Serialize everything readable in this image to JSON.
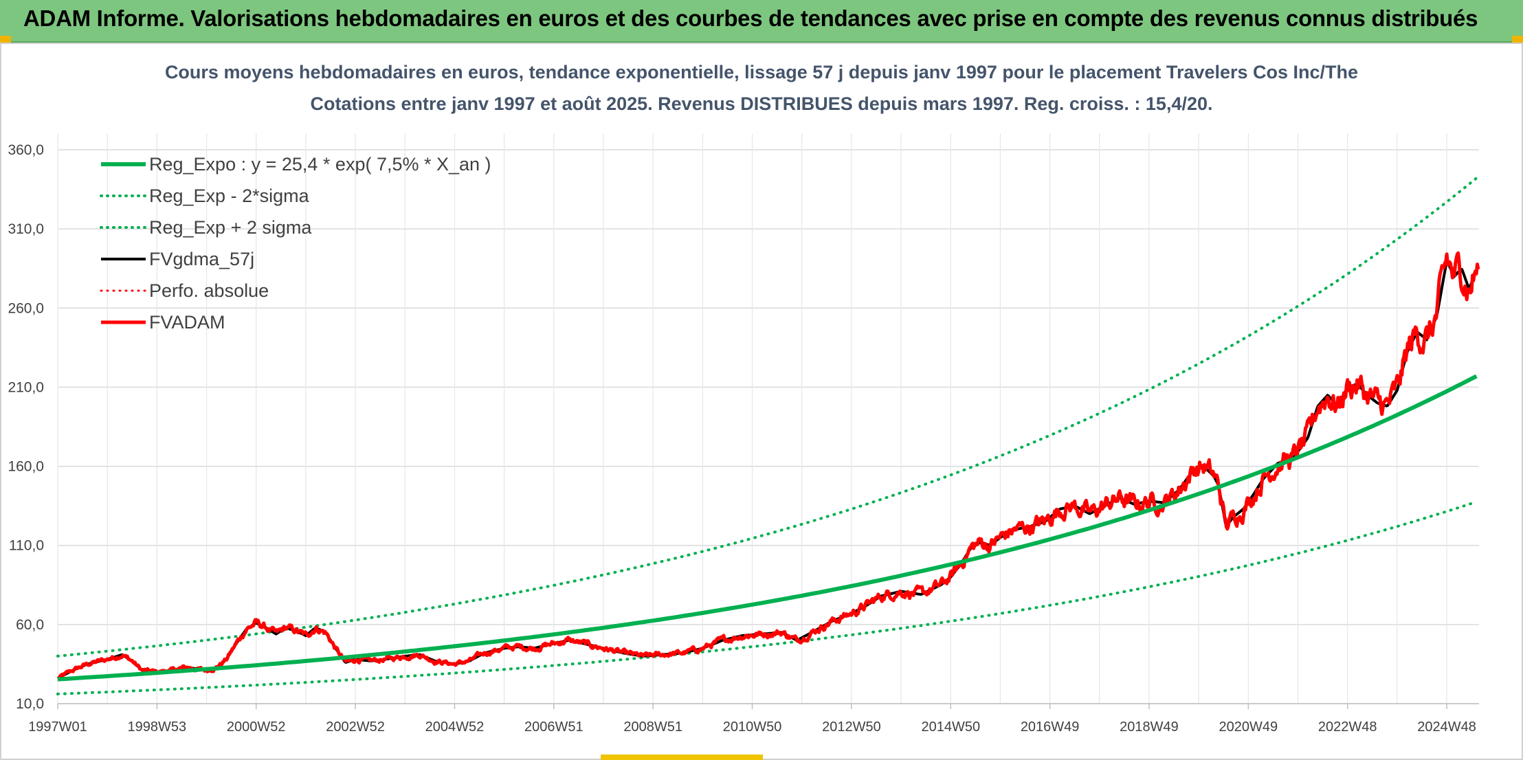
{
  "header": {
    "title": "ADAM Informe. Valorisations hebdomadaires en euros et des courbes de tendances avec prise en compte des revenus connus distribués"
  },
  "colors": {
    "header_bg": "#7dc67f",
    "reg_green": "#00b050",
    "fv_black": "#000000",
    "adam_red": "#ff0000",
    "grid": "#d9d9d9",
    "title_text": "#44546a"
  },
  "chart_data": {
    "type": "line",
    "title": "Cours moyens hebdomadaires en euros, tendance exponentielle, lissage 57 j depuis janv 1997 pour le placement Travelers Cos Inc/The",
    "subtitle": "Cotations entre janv 1997 et août 2025. Revenus DISTRIBUES depuis mars 1997. Reg. croiss. : 15,4/20.",
    "xlabel": "",
    "ylabel": "",
    "ylim": [
      10,
      360
    ],
    "xlim_years": [
      1997.0,
      2025.65
    ],
    "y_ticks": [
      "10,0",
      "60,0",
      "110,0",
      "160,0",
      "210,0",
      "260,0",
      "310,0",
      "360,0"
    ],
    "x_ticks": [
      {
        "label": "1997W01",
        "t": 1997.0
      },
      {
        "label": "1998W53",
        "t": 1999.0
      },
      {
        "label": "2000W52",
        "t": 2001.0
      },
      {
        "label": "2002W52",
        "t": 2003.0
      },
      {
        "label": "2004W52",
        "t": 2005.0
      },
      {
        "label": "2006W51",
        "t": 2007.0
      },
      {
        "label": "2008W51",
        "t": 2009.0
      },
      {
        "label": "2010W50",
        "t": 2011.0
      },
      {
        "label": "2012W50",
        "t": 2013.0
      },
      {
        "label": "2014W50",
        "t": 2015.0
      },
      {
        "label": "2016W49",
        "t": 2017.0
      },
      {
        "label": "2018W49",
        "t": 2019.0
      },
      {
        "label": "2020W49",
        "t": 2021.0
      },
      {
        "label": "2022W48",
        "t": 2023.0
      },
      {
        "label": "2024W48",
        "t": 2025.0
      }
    ],
    "grid": true,
    "legend_position": "top-left",
    "regression": {
      "a": 25.4,
      "rate": 0.075,
      "sigma_factor_low": 0.634,
      "sigma_factor_high": 1.577
    },
    "series": [
      {
        "name": "Reg_Expo : y = 25,4 * exp( 7,5% *  X_an )",
        "color": "#00b050",
        "style": "solid",
        "width": 6
      },
      {
        "name": "Reg_Exp - 2*sigma",
        "color": "#00b050",
        "style": "dotted",
        "width": 4
      },
      {
        "name": "Reg_Exp + 2 sigma",
        "color": "#00b050",
        "style": "dotted",
        "width": 4
      },
      {
        "name": "FVgdma_57j",
        "color": "#000000",
        "style": "solid",
        "width": 4
      },
      {
        "name": "Perfo. absolue",
        "color": "#ff0000",
        "style": "dotted",
        "width": 3
      },
      {
        "name": "FVADAM",
        "color": "#ff0000",
        "style": "solid",
        "width": 5
      }
    ],
    "fvadam_points": [
      [
        1997.0,
        26
      ],
      [
        1997.3,
        31
      ],
      [
        1997.6,
        35
      ],
      [
        1998.0,
        38
      ],
      [
        1998.3,
        41
      ],
      [
        1998.5,
        37
      ],
      [
        1998.7,
        31
      ],
      [
        1999.0,
        30
      ],
      [
        1999.3,
        31
      ],
      [
        1999.6,
        33
      ],
      [
        2000.0,
        31
      ],
      [
        2000.2,
        33
      ],
      [
        2000.4,
        38
      ],
      [
        2000.6,
        48
      ],
      [
        2000.8,
        57
      ],
      [
        2001.0,
        61
      ],
      [
        2001.2,
        58
      ],
      [
        2001.4,
        54
      ],
      [
        2001.6,
        58
      ],
      [
        2001.8,
        56
      ],
      [
        2002.0,
        53
      ],
      [
        2002.2,
        58
      ],
      [
        2002.4,
        55
      ],
      [
        2002.6,
        45
      ],
      [
        2002.8,
        36
      ],
      [
        2003.0,
        38
      ],
      [
        2003.3,
        37
      ],
      [
        2003.6,
        38
      ],
      [
        2004.0,
        40
      ],
      [
        2004.3,
        41
      ],
      [
        2004.6,
        37
      ],
      [
        2005.0,
        35
      ],
      [
        2005.3,
        37
      ],
      [
        2005.6,
        42
      ],
      [
        2006.0,
        45
      ],
      [
        2006.3,
        46
      ],
      [
        2006.6,
        45
      ],
      [
        2007.0,
        48
      ],
      [
        2007.3,
        50
      ],
      [
        2007.6,
        48
      ],
      [
        2008.0,
        45
      ],
      [
        2008.4,
        42
      ],
      [
        2008.8,
        40
      ],
      [
        2009.2,
        41
      ],
      [
        2009.6,
        42
      ],
      [
        2010.0,
        45
      ],
      [
        2010.4,
        50
      ],
      [
        2010.8,
        53
      ],
      [
        2011.2,
        54
      ],
      [
        2011.6,
        55
      ],
      [
        2011.9,
        50
      ],
      [
        2012.2,
        55
      ],
      [
        2012.6,
        62
      ],
      [
        2013.0,
        67
      ],
      [
        2013.3,
        72
      ],
      [
        2013.6,
        78
      ],
      [
        2014.0,
        81
      ],
      [
        2014.4,
        79
      ],
      [
        2014.8,
        85
      ],
      [
        2015.0,
        90
      ],
      [
        2015.2,
        98
      ],
      [
        2015.4,
        108
      ],
      [
        2015.6,
        112
      ],
      [
        2015.8,
        110
      ],
      [
        2016.0,
        115
      ],
      [
        2016.3,
        120
      ],
      [
        2016.6,
        122
      ],
      [
        2016.9,
        125
      ],
      [
        2017.2,
        133
      ],
      [
        2017.5,
        135
      ],
      [
        2017.8,
        130
      ],
      [
        2018.1,
        135
      ],
      [
        2018.4,
        140
      ],
      [
        2018.7,
        136
      ],
      [
        2019.0,
        138
      ],
      [
        2019.3,
        137
      ],
      [
        2019.6,
        145
      ],
      [
        2019.9,
        158
      ],
      [
        2020.1,
        160
      ],
      [
        2020.3,
        154
      ],
      [
        2020.4,
        148
      ],
      [
        2020.55,
        122
      ],
      [
        2020.7,
        128
      ],
      [
        2020.9,
        133
      ],
      [
        2021.1,
        142
      ],
      [
        2021.3,
        152
      ],
      [
        2021.6,
        162
      ],
      [
        2021.9,
        165
      ],
      [
        2022.2,
        178
      ],
      [
        2022.4,
        198
      ],
      [
        2022.6,
        205
      ],
      [
        2022.8,
        198
      ],
      [
        2023.0,
        210
      ],
      [
        2023.2,
        212
      ],
      [
        2023.4,
        205
      ],
      [
        2023.6,
        200
      ],
      [
        2023.8,
        198
      ],
      [
        2024.0,
        208
      ],
      [
        2024.2,
        232
      ],
      [
        2024.4,
        245
      ],
      [
        2024.6,
        240
      ],
      [
        2024.8,
        255
      ],
      [
        2025.0,
        290
      ],
      [
        2025.15,
        280
      ],
      [
        2025.3,
        285
      ],
      [
        2025.45,
        272
      ],
      [
        2025.6,
        284
      ]
    ]
  }
}
